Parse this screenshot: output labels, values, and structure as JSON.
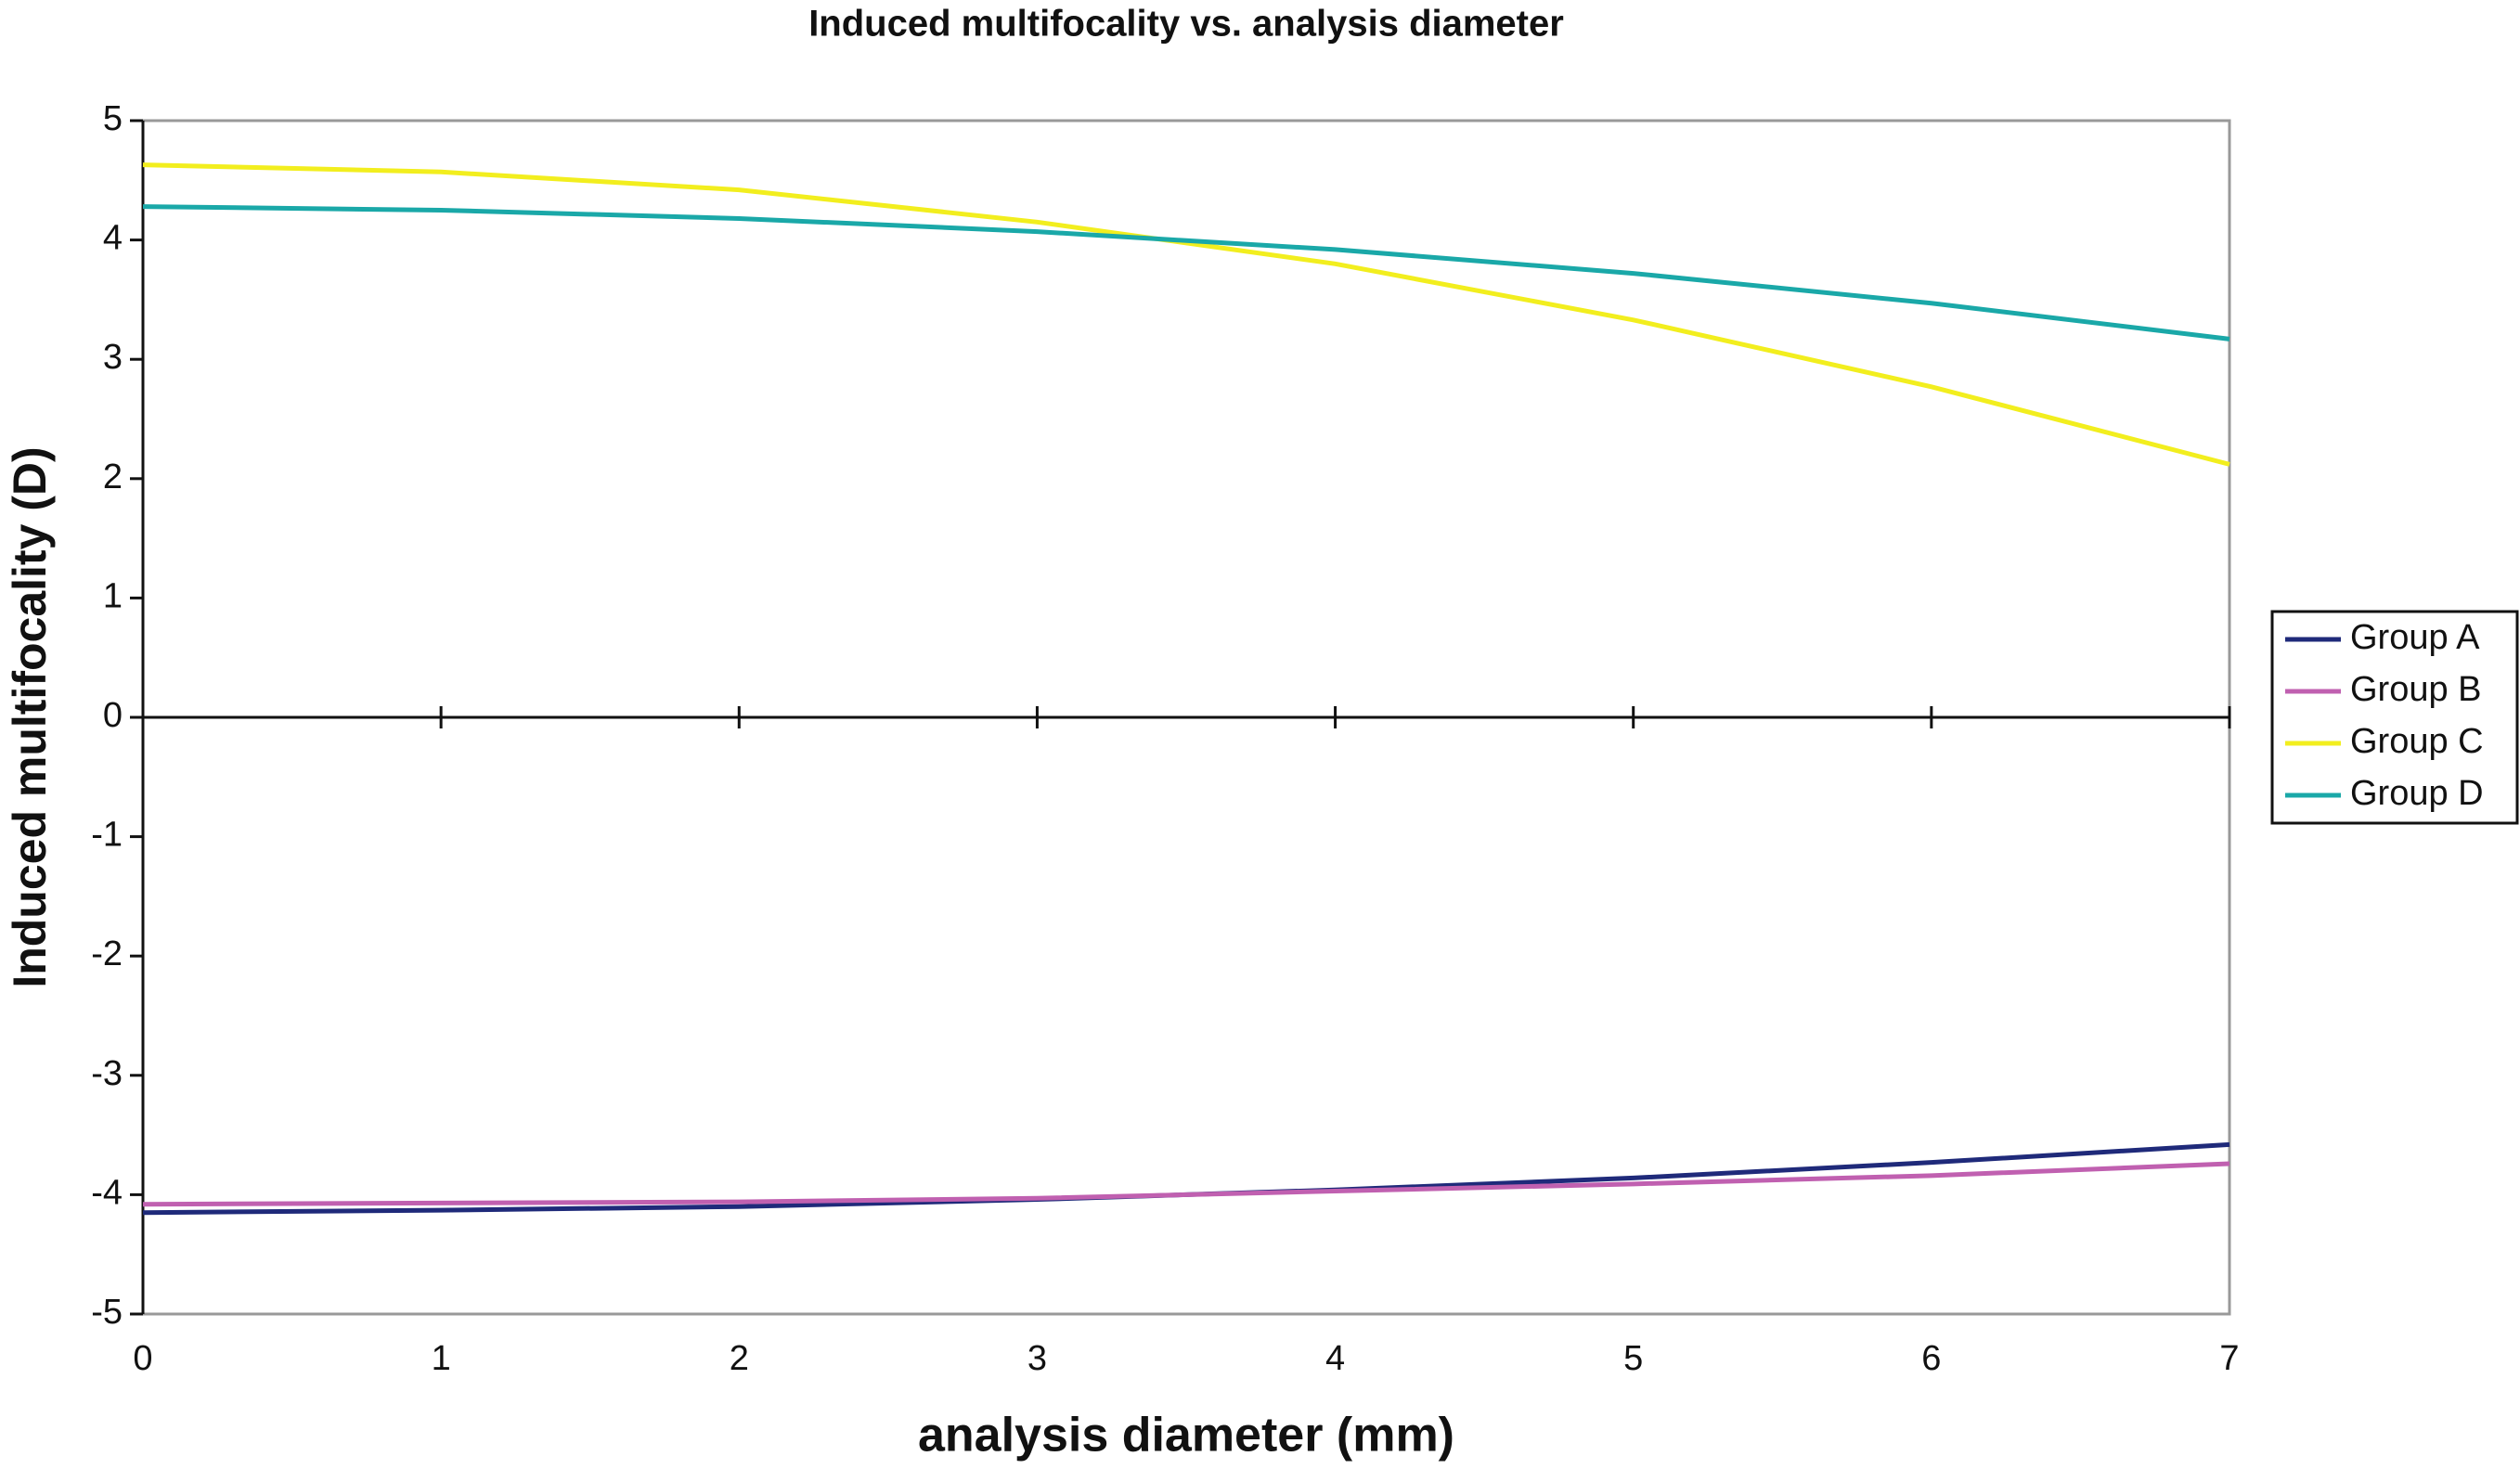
{
  "chart_data": {
    "type": "line",
    "title": "Induced multifocality vs. analysis diameter",
    "x_label": "analysis diameter (mm)",
    "y_label": "Induced multifocality (D)",
    "x": [
      0,
      1,
      2,
      3,
      4,
      5,
      6,
      7
    ],
    "series": [
      {
        "name": "Group A",
        "color": "#1f2a7a",
        "values": [
          -4.15,
          -4.13,
          -4.1,
          -4.04,
          -3.96,
          -3.86,
          -3.73,
          -3.58
        ]
      },
      {
        "name": "Group B",
        "color": "#c060b0",
        "values": [
          -4.08,
          -4.07,
          -4.06,
          -4.03,
          -3.97,
          -3.91,
          -3.84,
          -3.74
        ]
      },
      {
        "name": "Group C",
        "color": "#f2ee1e",
        "values": [
          4.63,
          4.57,
          4.42,
          4.15,
          3.8,
          3.33,
          2.77,
          2.12
        ]
      },
      {
        "name": "Group D",
        "color": "#1aa8a8",
        "values": [
          4.28,
          4.25,
          4.18,
          4.07,
          3.92,
          3.72,
          3.47,
          3.17
        ]
      }
    ],
    "xlim": [
      0,
      7
    ],
    "xticks": [
      0,
      1,
      2,
      3,
      4,
      5,
      6,
      7
    ],
    "ylim": [
      -5,
      5
    ],
    "yticks": [
      -5,
      -4,
      -3,
      -2,
      -1,
      0,
      1,
      2,
      3,
      4,
      5
    ],
    "grid": false,
    "legend": "right"
  }
}
